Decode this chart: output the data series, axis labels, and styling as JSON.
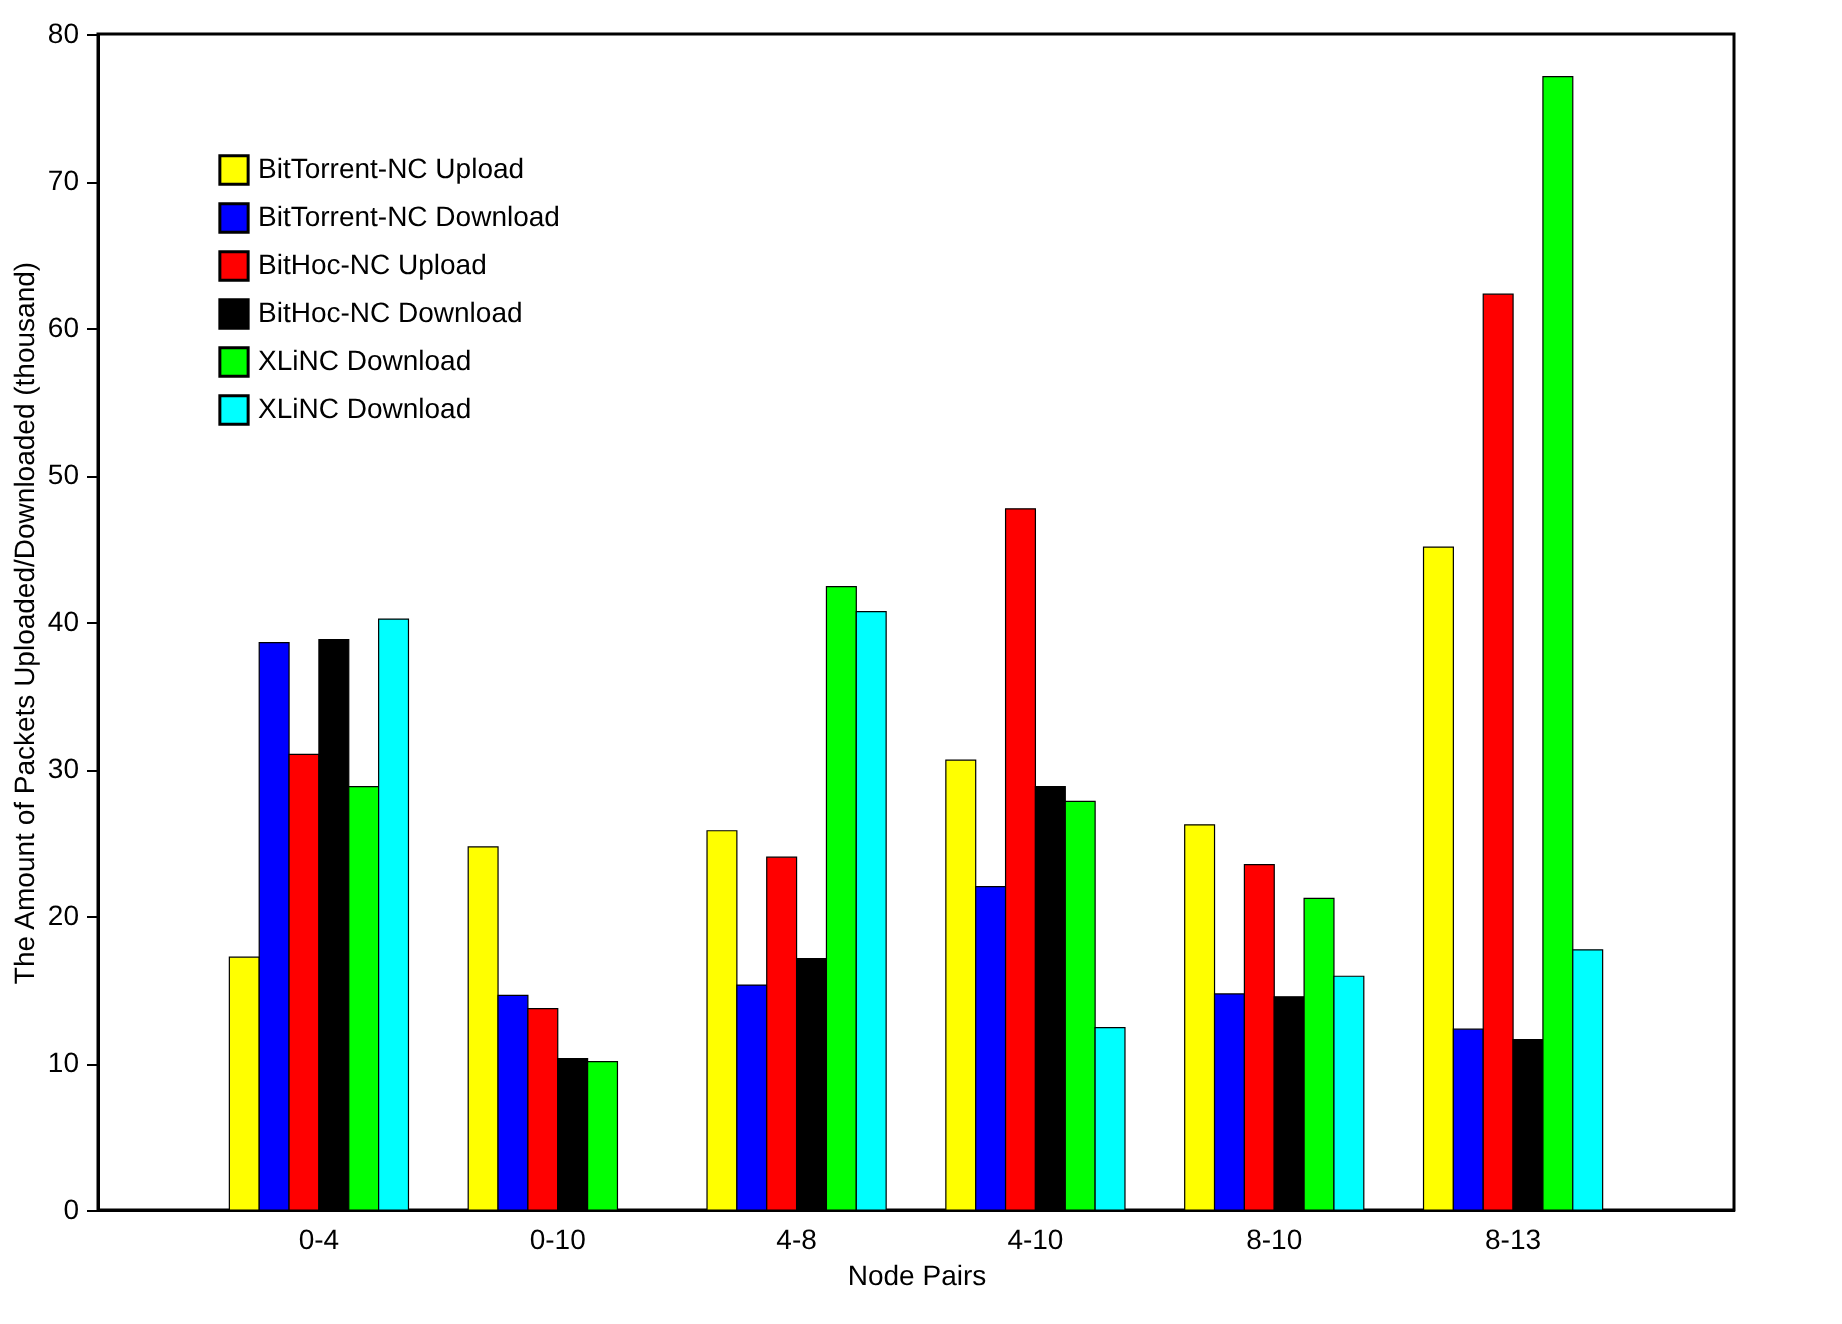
{
  "chart_data": {
    "type": "bar",
    "xlabel": "Node Pairs",
    "ylabel": "The Amount of Packets Uploaded/Downloaded (thousand)",
    "categories": [
      "0-4",
      "0-10",
      "4-8",
      "4-10",
      "8-10",
      "8-13"
    ],
    "series": [
      {
        "name": "BitTorrent-NC Upload",
        "color": "#ffff00",
        "values": [
          17.2,
          24.7,
          25.8,
          30.6,
          26.2,
          45.1
        ]
      },
      {
        "name": "BitTorrent-NC Download",
        "color": "#0000ff",
        "values": [
          38.6,
          14.6,
          15.3,
          22.0,
          14.7,
          12.3
        ]
      },
      {
        "name": "BitHoc-NC Upload",
        "color": "#ff0000",
        "values": [
          31.0,
          13.7,
          24.0,
          47.7,
          23.5,
          62.3
        ]
      },
      {
        "name": "BitHoc-NC Download",
        "color": "#000000",
        "values": [
          38.8,
          10.3,
          17.1,
          28.8,
          14.5,
          11.6
        ]
      },
      {
        "name": "XLiNC Download",
        "color": "#00ff00",
        "values": [
          28.8,
          10.1,
          42.4,
          27.8,
          21.2,
          77.1
        ]
      },
      {
        "name": "XLiNC Download",
        "color": "#00ffff",
        "values": [
          40.2,
          null,
          40.7,
          12.4,
          15.9,
          17.7
        ]
      }
    ],
    "ylim": [
      0,
      80
    ],
    "yticks": [
      0,
      10,
      20,
      30,
      40,
      50,
      60,
      70,
      80
    ],
    "grid": false,
    "legend": "top left"
  }
}
